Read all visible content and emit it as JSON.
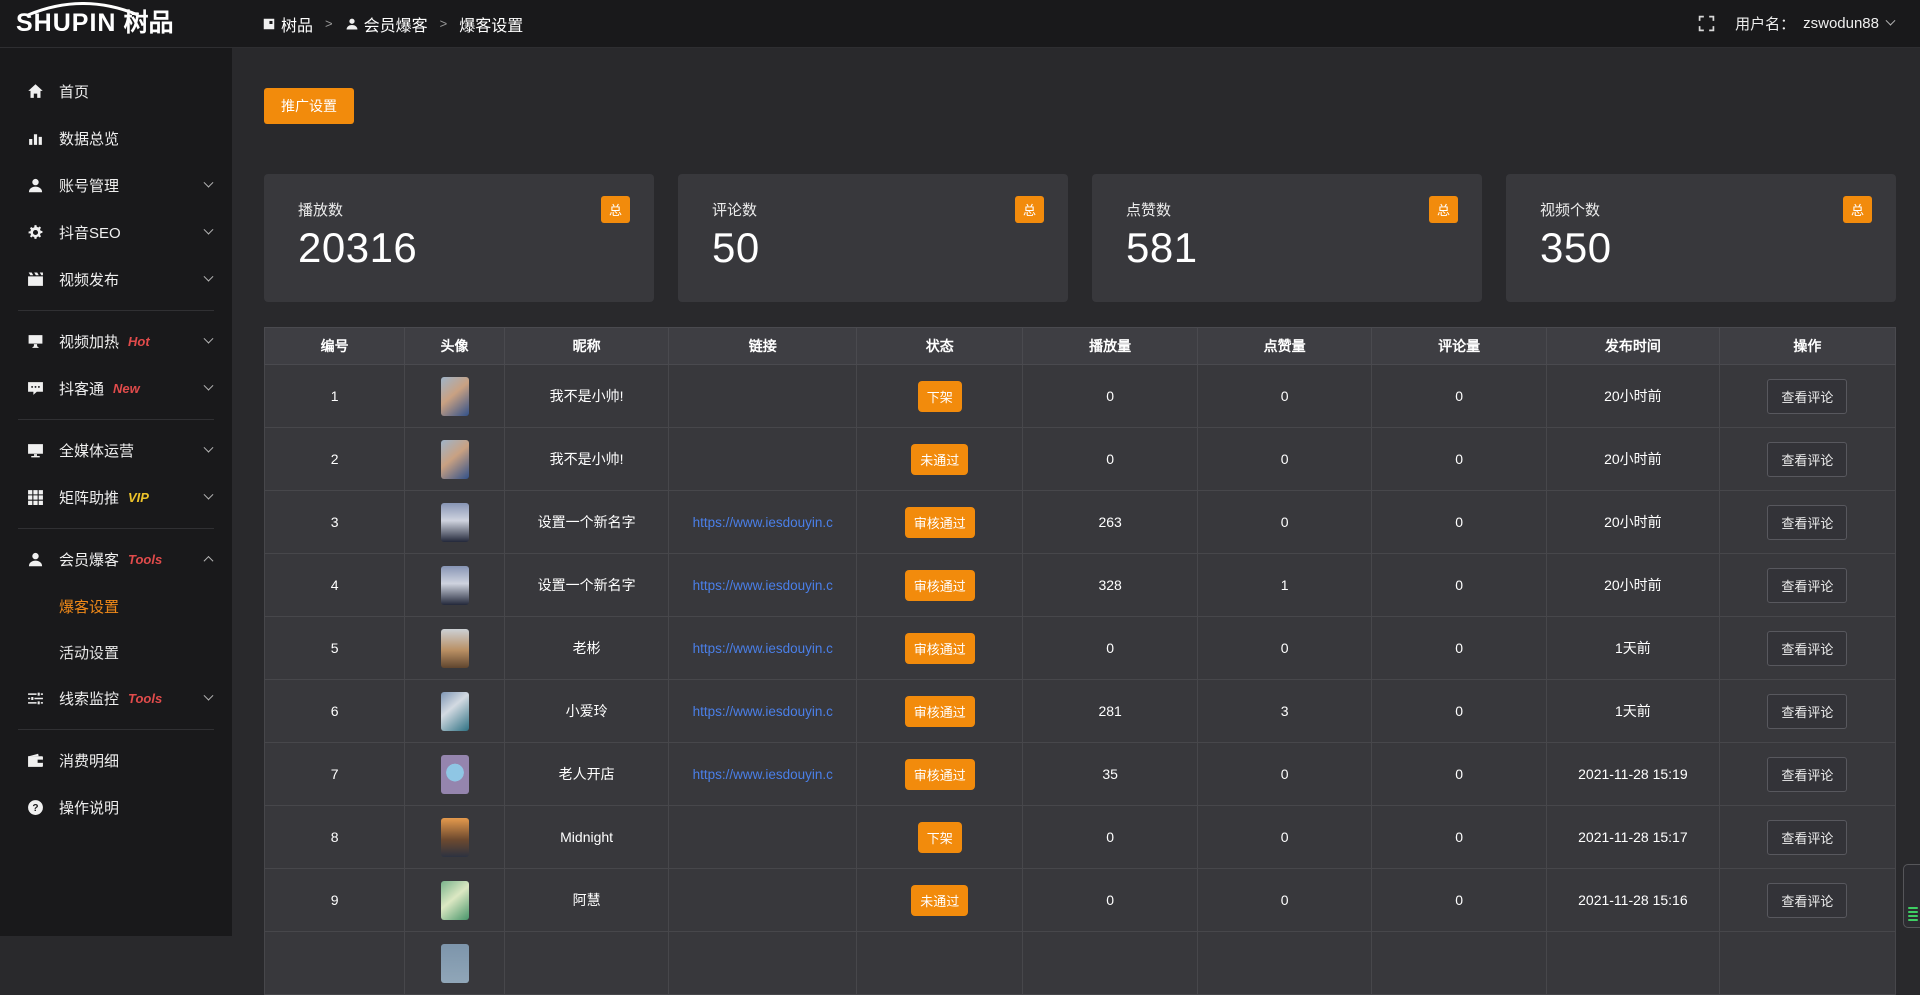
{
  "brand": {
    "logo_en": "SHUPIN",
    "logo_cn": "树品"
  },
  "topbar": {
    "breadcrumb": [
      {
        "label": "树品",
        "icon": "app-square-icon",
        "clickable": true
      },
      {
        "label": "会员爆客",
        "icon": "user-icon",
        "clickable": true
      },
      {
        "label": "爆客设置",
        "icon": "",
        "clickable": false
      }
    ],
    "separator": ">",
    "username_label": "用户名：",
    "username": "zswodun88"
  },
  "sidebar": {
    "items": [
      {
        "label": "首页",
        "icon": "home-icon"
      },
      {
        "label": "数据总览",
        "icon": "chart-icon"
      },
      {
        "label": "账号管理",
        "icon": "user-icon",
        "chevron": "down"
      },
      {
        "label": "抖音SEO",
        "icon": "gear-icon",
        "chevron": "down"
      },
      {
        "label": "视频发布",
        "icon": "clapperboard-icon",
        "chevron": "down",
        "divider_after": true
      },
      {
        "label": "视频加热",
        "icon": "heat-icon",
        "tag": "Hot",
        "tag_color": "#e04b4b",
        "chevron": "down"
      },
      {
        "label": "抖客通",
        "icon": "chat-icon",
        "tag": "New",
        "tag_color": "#e04b4b",
        "chevron": "down",
        "divider_after": true
      },
      {
        "label": "全媒体运营",
        "icon": "monitor-icon",
        "chevron": "down"
      },
      {
        "label": "矩阵助推",
        "icon": "grid-icon",
        "tag": "VIP",
        "tag_color": "#edc32a",
        "chevron": "down",
        "divider_after": true
      },
      {
        "label": "会员爆客",
        "icon": "member-icon",
        "tag": "Tools",
        "tag_color": "#e04b4b",
        "chevron": "up",
        "children": [
          {
            "label": "爆客设置",
            "active": true
          },
          {
            "label": "活动设置",
            "active": false
          }
        ]
      },
      {
        "label": "线索监控",
        "icon": "sliders-icon",
        "tag": "Tools",
        "tag_color": "#e04b4b",
        "chevron": "down",
        "divider_after": true
      },
      {
        "label": "消费明细",
        "icon": "wallet-icon"
      },
      {
        "label": "操作说明",
        "icon": "help-icon"
      }
    ]
  },
  "toolbar": {
    "promo_button": "推广设置"
  },
  "stats": {
    "badge": "总",
    "cards": [
      {
        "label": "播放数",
        "value": "20316"
      },
      {
        "label": "评论数",
        "value": "50"
      },
      {
        "label": "点赞数",
        "value": "581"
      },
      {
        "label": "视频个数",
        "value": "350"
      }
    ]
  },
  "table": {
    "columns": [
      "编号",
      "头像",
      "昵称",
      "链接",
      "状态",
      "播放量",
      "点赞量",
      "评论量",
      "发布时间",
      "操作"
    ],
    "col_widths": [
      "8.6%",
      "6.1%",
      "10.1%",
      "11.5%",
      "10.2%",
      "10.7%",
      "10.7%",
      "10.7%",
      "10.6%",
      "10.8%"
    ],
    "action_label": "查看评论",
    "rows": [
      {
        "id": "1",
        "nickname": "我不是小帅!",
        "link": "",
        "status": "下架",
        "plays": "0",
        "likes": "0",
        "comments": "0",
        "time": "20小时前",
        "avatar": "linear-gradient(140deg,#9fb4c9 0%,#c9a182 45%,#31518a 100%)"
      },
      {
        "id": "2",
        "nickname": "我不是小帅!",
        "link": "",
        "status": "未通过",
        "plays": "0",
        "likes": "0",
        "comments": "0",
        "time": "20小时前",
        "avatar": "linear-gradient(140deg,#9fb4c9 0%,#c9a182 45%,#31518a 100%)"
      },
      {
        "id": "3",
        "nickname": "设置一个新名字",
        "link": "https://www.iesdouyin.c",
        "status": "审核通过",
        "plays": "263",
        "likes": "0",
        "comments": "0",
        "time": "20小时前",
        "avatar": "linear-gradient(180deg,#8795b5 0%,#cfd3df 45%,#23283a 100%)"
      },
      {
        "id": "4",
        "nickname": "设置一个新名字",
        "link": "https://www.iesdouyin.c",
        "status": "审核通过",
        "plays": "328",
        "likes": "1",
        "comments": "0",
        "time": "20小时前",
        "avatar": "linear-gradient(180deg,#8795b5 0%,#cfd3df 45%,#23283a 100%)"
      },
      {
        "id": "5",
        "nickname": "老彬",
        "link": "https://www.iesdouyin.c",
        "status": "审核通过",
        "plays": "0",
        "likes": "0",
        "comments": "0",
        "time": "1天前",
        "avatar": "linear-gradient(180deg,#ccd0d5 0%,#b98f63 55%,#5f452e 100%)"
      },
      {
        "id": "6",
        "nickname": "小爱玲",
        "link": "https://www.iesdouyin.c",
        "status": "审核通过",
        "plays": "281",
        "likes": "3",
        "comments": "0",
        "time": "1天前",
        "avatar": "linear-gradient(140deg,#7e96b5 0%,#d3dae2 40%,#2e7183 100%)"
      },
      {
        "id": "7",
        "nickname": "老人开店",
        "link": "https://www.iesdouyin.c",
        "status": "审核通过",
        "plays": "35",
        "likes": "0",
        "comments": "0",
        "time": "2021-11-28 15:19",
        "avatar": "radial-gradient(circle at 50% 45%,#8fc6e4 0%,#8fc6e4 34%,#9585ae 35%,#9585ae 100%)"
      },
      {
        "id": "8",
        "nickname": "Midnight",
        "link": "",
        "status": "下架",
        "plays": "0",
        "likes": "0",
        "comments": "0",
        "time": "2021-11-28 15:17",
        "avatar": "linear-gradient(180deg,#e59a4d 0%,#6e4a2f 55%,#2c3240 100%)"
      },
      {
        "id": "9",
        "nickname": "阿慧",
        "link": "",
        "status": "未通过",
        "plays": "0",
        "likes": "0",
        "comments": "0",
        "time": "2021-11-28 15:16",
        "avatar": "linear-gradient(140deg,#79b38c 0%,#dce8c3 45%,#47956a 100%)"
      }
    ],
    "partial_row": {
      "avatar": "linear-gradient(180deg,#7d95ab 0%,#90a6b8 100%)"
    }
  },
  "colors": {
    "accent_orange": "#f28b0c",
    "link_blue": "#4a7fe8",
    "tag_red": "#e04b4b",
    "tag_yellow": "#edc32a",
    "widget_green": "#3ecf63",
    "topbar_bg": "#19191b",
    "content_bg": "#29292c",
    "panel_bg": "#38383c"
  }
}
